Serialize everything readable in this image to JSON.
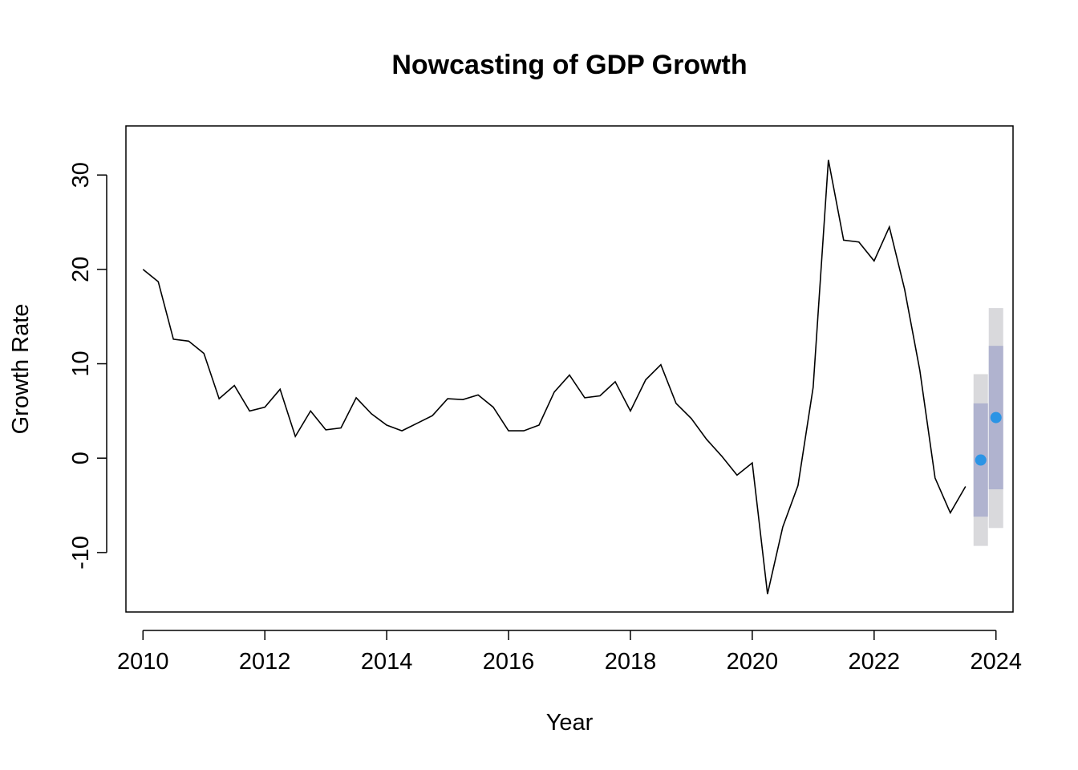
{
  "chart_data": {
    "type": "line",
    "title": "Nowcasting of GDP Growth",
    "xlabel": "Year",
    "ylabel": "Growth Rate",
    "xlim": [
      2009.72,
      2024.28
    ],
    "ylim": [
      -16.3,
      35.2
    ],
    "x_ticks": [
      "2010",
      "2012",
      "2014",
      "2016",
      "2018",
      "2020",
      "2022",
      "2024"
    ],
    "y_ticks": [
      "-10",
      "0",
      "10",
      "20",
      "30"
    ],
    "grid": false,
    "legend": "none",
    "colors": {
      "line": "#000000",
      "forecast_point": "#2b94e5",
      "interval_80": "#b0b3cf",
      "interval_95": "#d9d9dc"
    },
    "series": [
      {
        "x": [
          2010.0,
          2010.25,
          2010.5,
          2010.75,
          2011.0,
          2011.25,
          2011.5,
          2011.75,
          2012.0,
          2012.25,
          2012.5,
          2012.75,
          2013.0,
          2013.25,
          2013.5,
          2013.75,
          2014.0,
          2014.25,
          2014.5,
          2014.75,
          2015.0,
          2015.25,
          2015.5,
          2015.75,
          2016.0,
          2016.25,
          2016.5,
          2016.75,
          2017.0,
          2017.25,
          2017.5,
          2017.75,
          2018.0,
          2018.25,
          2018.5,
          2018.75,
          2019.0,
          2019.25,
          2019.5,
          2019.75,
          2020.0,
          2020.25,
          2020.5,
          2020.75,
          2021.0,
          2021.25,
          2021.5,
          2021.75,
          2022.0,
          2022.25,
          2022.5,
          2022.75,
          2023.0,
          2023.25,
          2023.5
        ],
        "values": [
          20.0,
          18.7,
          12.6,
          12.4,
          11.1,
          6.3,
          7.7,
          5.0,
          5.4,
          7.3,
          2.3,
          5.0,
          3.0,
          3.2,
          6.4,
          4.7,
          3.5,
          2.9,
          3.7,
          4.5,
          6.3,
          6.2,
          6.7,
          5.4,
          2.9,
          2.9,
          3.5,
          7.0,
          8.8,
          6.4,
          6.6,
          8.1,
          5.0,
          8.3,
          9.9,
          5.8,
          4.2,
          2.0,
          0.2,
          -1.8,
          -0.5,
          -14.4,
          -7.3,
          -2.9,
          7.5,
          31.6,
          23.1,
          22.9,
          20.9,
          24.5,
          17.9,
          9.3,
          -2.1,
          -5.8,
          -3.0
        ]
      }
    ],
    "forecast": [
      {
        "x": 2023.75,
        "value": -0.2,
        "lo80": -6.2,
        "hi80": 5.8,
        "lo95": -9.3,
        "hi95": 8.9
      },
      {
        "x": 2024.0,
        "value": 4.3,
        "lo80": -3.3,
        "hi80": 11.9,
        "lo95": -7.4,
        "hi95": 15.9
      }
    ]
  }
}
